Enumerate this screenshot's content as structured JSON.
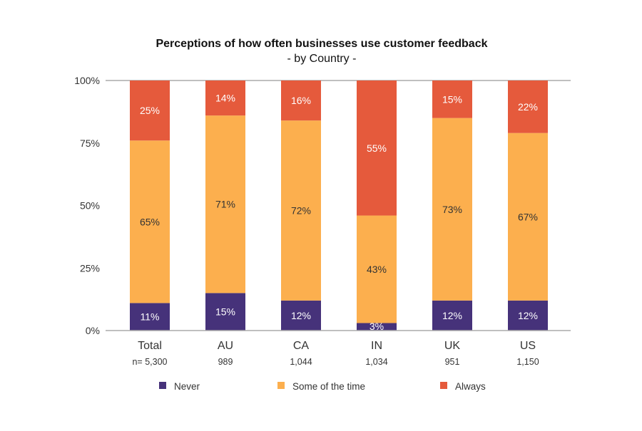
{
  "chart_data": {
    "type": "bar",
    "stacked": true,
    "title": "Perceptions of how often businesses use customer feedback",
    "subtitle": "- by Country -",
    "categories": [
      "Total",
      "AU",
      "CA",
      "IN",
      "UK",
      "US"
    ],
    "sample_sizes": [
      "n= 5,300",
      "989",
      "1,044",
      "1,034",
      "951",
      "1,150"
    ],
    "series": [
      {
        "name": "Never",
        "color": "#46327a",
        "label_color": "#ffffff",
        "values": [
          11,
          15,
          12,
          3,
          12,
          12
        ]
      },
      {
        "name": "Some of the time",
        "color": "#fcaf4e",
        "label_color": "#333333",
        "values": [
          65,
          71,
          72,
          43,
          73,
          67
        ]
      },
      {
        "name": "Always",
        "color": "#e55a3c",
        "label_color": "#ffffff",
        "values": [
          25,
          14,
          16,
          55,
          15,
          22
        ]
      }
    ],
    "ylim": [
      0,
      100
    ],
    "yticks": [
      "0%",
      "25%",
      "50%",
      "75%",
      "100%"
    ],
    "grid": "top and baseline only",
    "legend": "bottom"
  }
}
